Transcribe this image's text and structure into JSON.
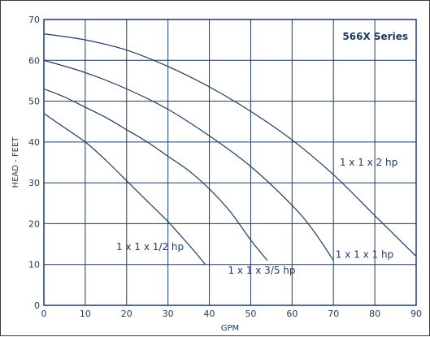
{
  "chart_data": {
    "type": "line",
    "title": "566X Series",
    "xlabel": "GPM",
    "ylabel": "HEAD - FEET",
    "xlim": [
      0,
      90
    ],
    "ylim": [
      0,
      70
    ],
    "x_ticks": [
      "0",
      "10",
      "20",
      "30",
      "40",
      "50",
      "60",
      "70",
      "80",
      "90"
    ],
    "y_ticks": [
      "0",
      "10",
      "20",
      "30",
      "40",
      "50",
      "60",
      "70"
    ],
    "grid": true,
    "series": [
      {
        "name": "1 x 1 x 1/2 hp",
        "x": [
          0,
          5,
          10,
          15,
          20,
          25,
          30,
          34,
          37,
          39
        ],
        "y": [
          47,
          43.5,
          40,
          35.5,
          30.5,
          25.5,
          20.5,
          16,
          12.5,
          10
        ]
      },
      {
        "name": "1 x 1 x 3/5 hp",
        "x": [
          0,
          5,
          10,
          15,
          20,
          25,
          30,
          35,
          40,
          45,
          50,
          54
        ],
        "y": [
          53,
          51,
          48.5,
          46,
          43,
          40,
          36.5,
          33,
          28.5,
          23,
          16,
          11
        ]
      },
      {
        "name": "1 x 1 x 1 hp",
        "x": [
          0,
          10,
          20,
          30,
          40,
          50,
          60,
          65,
          70
        ],
        "y": [
          60,
          57,
          53,
          48,
          41.5,
          34,
          24.5,
          18.5,
          11
        ]
      },
      {
        "name": "1 x 1 x 2 hp",
        "x": [
          0,
          10,
          20,
          30,
          40,
          50,
          60,
          70,
          80,
          90
        ],
        "y": [
          66.5,
          65,
          62.5,
          58.5,
          53.5,
          47.5,
          40.5,
          32,
          22,
          12
        ]
      }
    ]
  }
}
